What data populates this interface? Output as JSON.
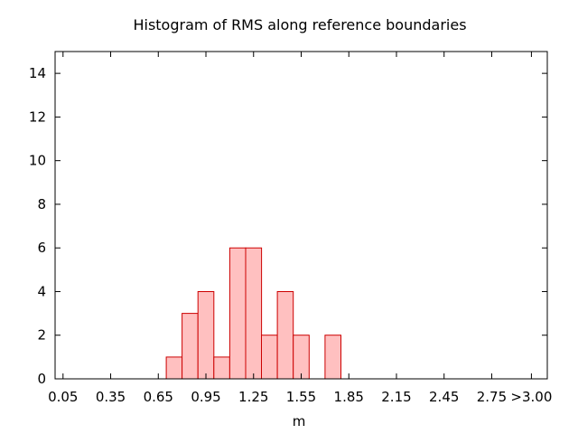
{
  "chart_data": {
    "type": "bar",
    "title": "Histogram of RMS along reference boundaries",
    "xlabel": "m",
    "ylabel": "",
    "ylim": [
      0,
      15
    ],
    "yticks": [
      0,
      2,
      4,
      6,
      8,
      10,
      12,
      14
    ],
    "grid": false,
    "legend": "none",
    "bar_fill": "#ffc0c0",
    "bar_stroke": "#cc0000",
    "xlim": [
      0,
      3.1
    ],
    "bin_width": 0.1,
    "xtick_values": [
      0.05,
      0.35,
      0.65,
      0.95,
      1.25,
      1.55,
      1.85,
      2.15,
      2.45,
      2.75,
      3.0
    ],
    "xtick_labels": [
      "0.05",
      "0.35",
      "0.65",
      "0.95",
      "1.25",
      "1.55",
      "1.85",
      "2.15",
      "2.45",
      "2.75",
      ">3.00"
    ],
    "bins": [
      {
        "start": 0.7,
        "value": 1
      },
      {
        "start": 0.8,
        "value": 3
      },
      {
        "start": 0.9,
        "value": 4
      },
      {
        "start": 1.0,
        "value": 1
      },
      {
        "start": 1.1,
        "value": 6
      },
      {
        "start": 1.2,
        "value": 6
      },
      {
        "start": 1.3,
        "value": 2
      },
      {
        "start": 1.4,
        "value": 4
      },
      {
        "start": 1.5,
        "value": 2
      },
      {
        "start": 1.7,
        "value": 2
      }
    ]
  }
}
